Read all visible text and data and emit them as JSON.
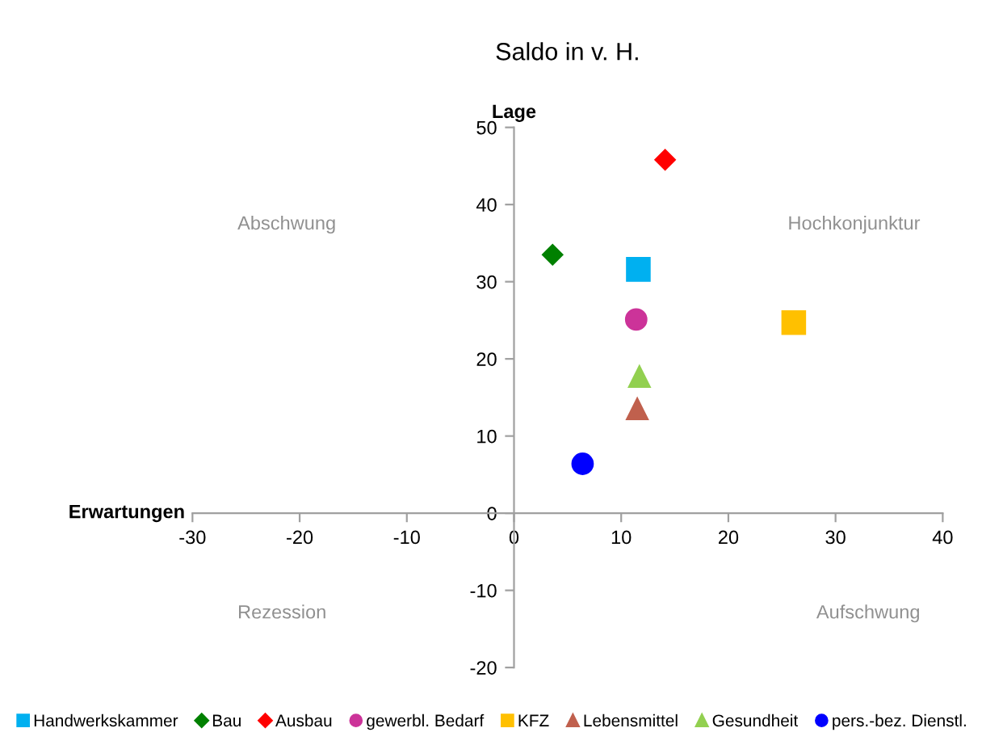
{
  "chart_data": {
    "type": "scatter",
    "title": "Saldo in v. H.",
    "xlabel": "Erwartungen",
    "ylabel": "Lage",
    "xlim": [
      -30,
      40
    ],
    "xticks": [
      -30,
      -20,
      -10,
      0,
      10,
      20,
      30,
      40
    ],
    "ylim": [
      -20,
      50
    ],
    "yticks": [
      -20,
      -10,
      0,
      10,
      20,
      30,
      40,
      50
    ],
    "grid": false,
    "legend": "bottom",
    "annotations": [
      "Abschwung",
      "Hochkonjunktur",
      "Rezession",
      "Aufschwung"
    ],
    "series": [
      {
        "name": "Handwerkskammer",
        "color": "#00b0f0",
        "marker": "square",
        "x": [
          11.6
        ],
        "values": [
          31.6
        ]
      },
      {
        "name": "Bau",
        "color": "#008000",
        "marker": "diamond",
        "x": [
          3.6
        ],
        "values": [
          33.5
        ]
      },
      {
        "name": "Ausbau",
        "color": "#ff0000",
        "marker": "diamond",
        "x": [
          14.1
        ],
        "values": [
          45.8
        ]
      },
      {
        "name": "gewerbl. Bedarf",
        "color": "#cc3399",
        "marker": "circle",
        "x": [
          11.4
        ],
        "values": [
          25.1
        ]
      },
      {
        "name": "KFZ",
        "color": "#ffc000",
        "marker": "square",
        "x": [
          26.1
        ],
        "values": [
          24.7
        ]
      },
      {
        "name": "Lebensmittel",
        "color": "#c0604d",
        "marker": "triangle",
        "x": [
          11.5
        ],
        "values": [
          13.5
        ]
      },
      {
        "name": "Gesundheit",
        "color": "#92d050",
        "marker": "triangle",
        "x": [
          11.7
        ],
        "values": [
          17.7
        ]
      },
      {
        "name": "pers.-bez. Dienstl.",
        "color": "#0000ff",
        "marker": "circle",
        "x": [
          6.4
        ],
        "values": [
          6.4
        ]
      }
    ]
  }
}
